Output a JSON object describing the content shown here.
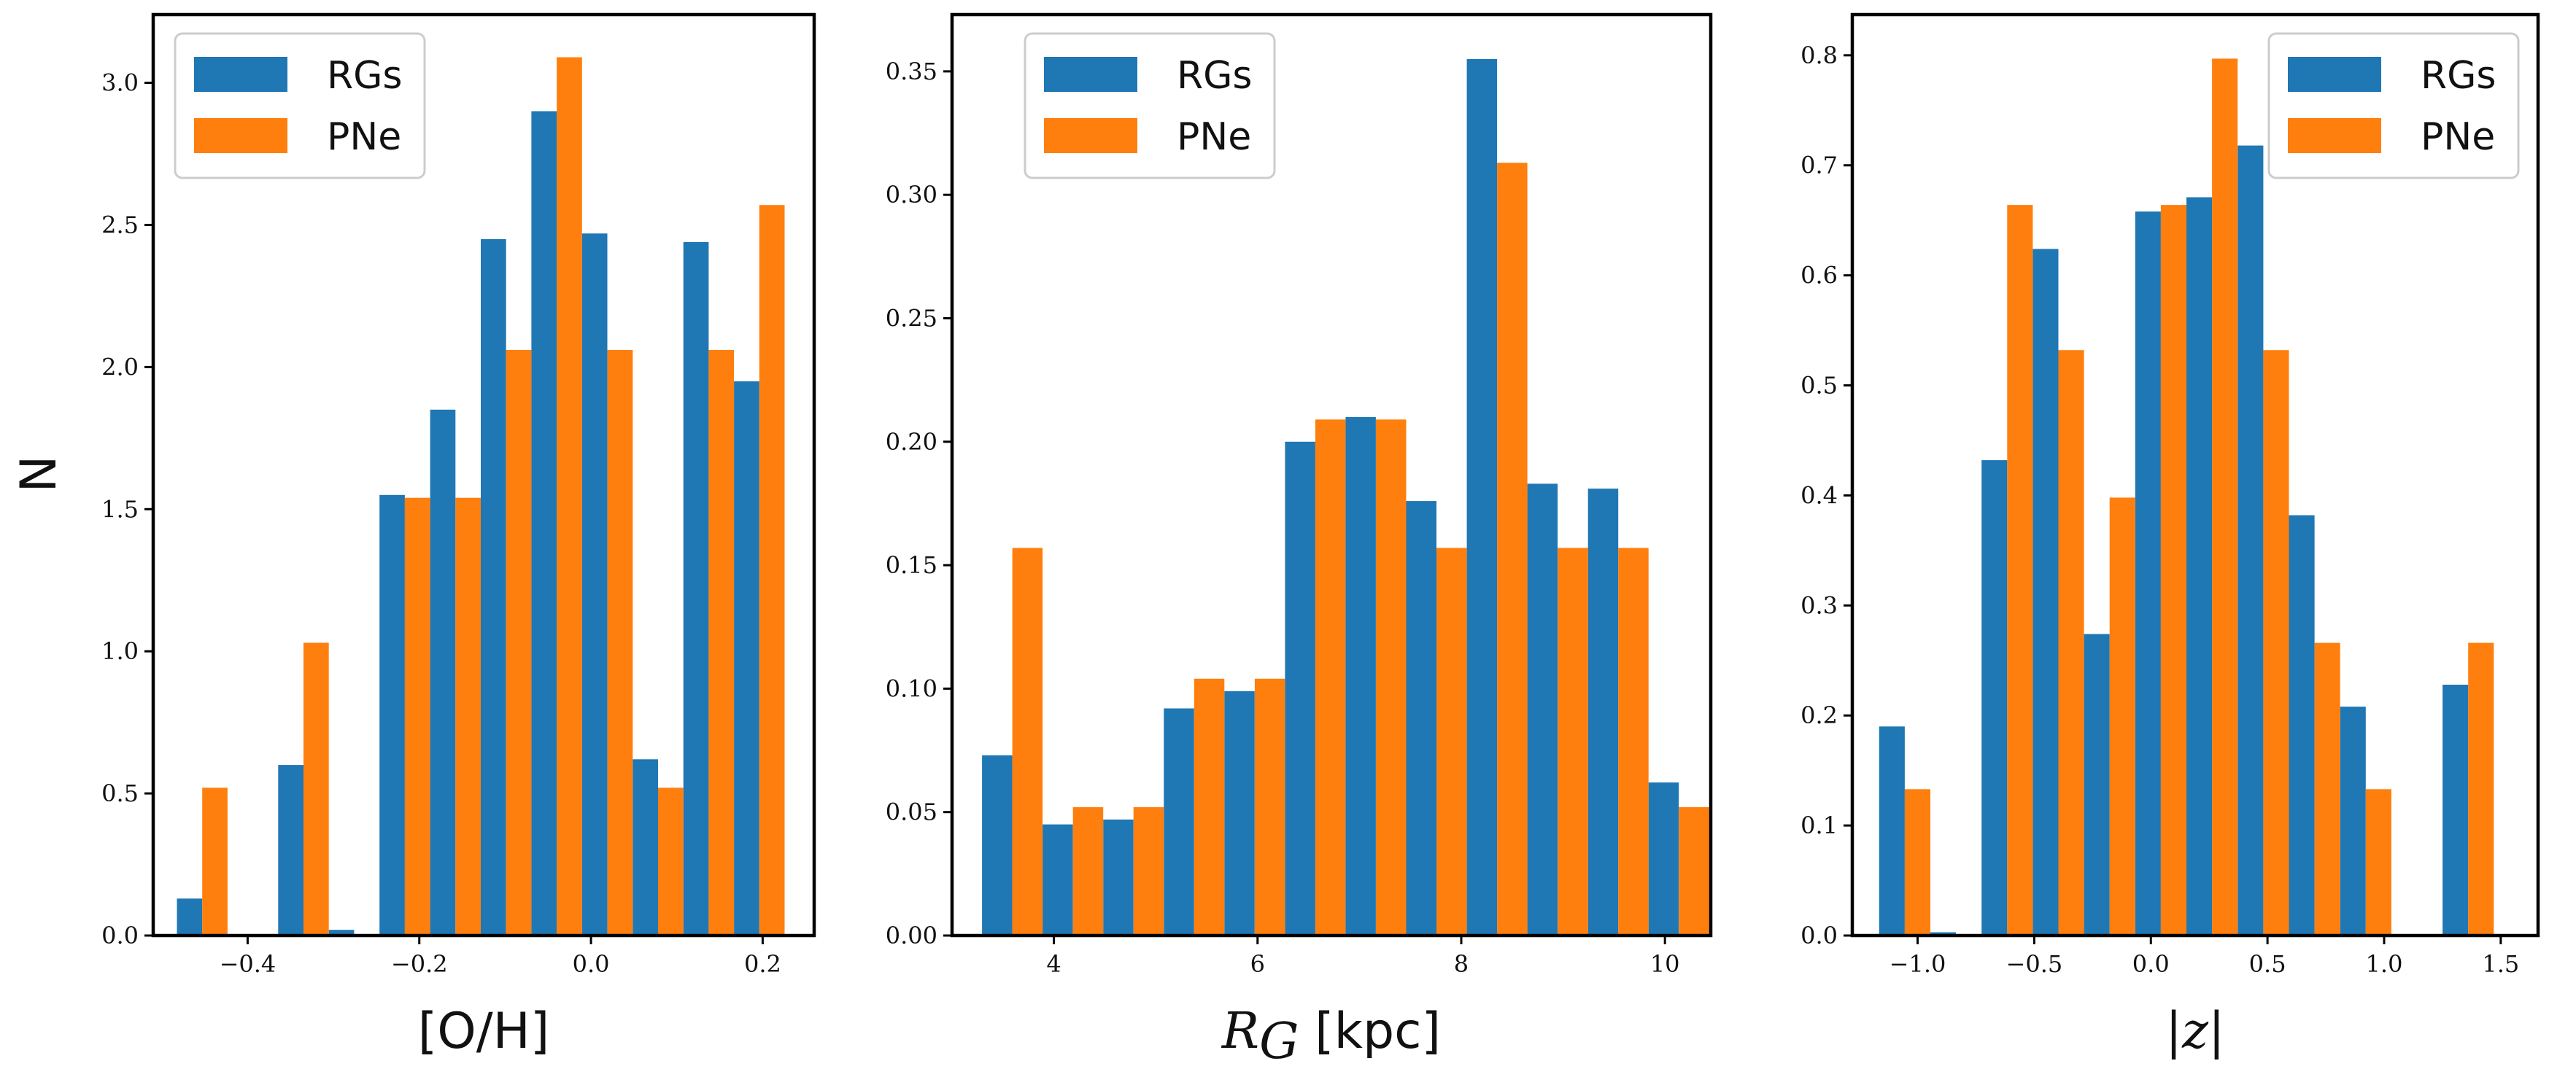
{
  "figure": {
    "ylabel": "N",
    "colors": {
      "RGs": "#1f77b4",
      "PNe": "#ff7f0e"
    }
  },
  "chart_data": [
    {
      "type": "bar",
      "title": "",
      "xlabel": "[O/H]",
      "ylabel": "N",
      "xlim": [
        -0.51,
        0.26
      ],
      "ylim": [
        0,
        3.24
      ],
      "bin_width": 0.059,
      "xticks": [
        -0.4,
        -0.2,
        0.0,
        0.2
      ],
      "xtick_labels": [
        "−0.4",
        "−0.2",
        "0.0",
        "0.2"
      ],
      "yticks": [
        0,
        0.5,
        1.0,
        1.5,
        2.0,
        2.5,
        3.0
      ],
      "ytick_labels": [
        "0.0",
        "0.5",
        "1.0",
        "1.5",
        "2.0",
        "2.5",
        "3.0"
      ],
      "legend_position": "top-left",
      "bin_centers": [
        -0.4529,
        -0.3939,
        -0.3349,
        -0.2759,
        -0.2169,
        -0.1579,
        -0.0989,
        -0.0399,
        0.0191,
        0.0781,
        0.1371,
        0.1961
      ],
      "series": [
        {
          "name": "RGs",
          "values": [
            0.13,
            0.0,
            0.6,
            0.02,
            1.55,
            1.85,
            2.45,
            2.9,
            2.47,
            0.62,
            2.44,
            1.95
          ]
        },
        {
          "name": "PNe",
          "values": [
            0.52,
            0.0,
            1.03,
            0.0,
            1.54,
            1.54,
            2.06,
            3.09,
            2.06,
            0.52,
            2.06,
            2.57
          ]
        }
      ]
    },
    {
      "type": "bar",
      "title": "",
      "xlabel": "R_G [kpc]",
      "xlabel_main": "R",
      "xlabel_sub": "G",
      "xlabel_unit": " [kpc]",
      "ylabel": "",
      "xlim": [
        3.0,
        10.45
      ],
      "ylim": [
        0,
        0.373
      ],
      "bin_width": 0.595,
      "xticks": [
        4,
        6,
        8,
        10
      ],
      "xtick_labels": [
        "4",
        "6",
        "8",
        "10"
      ],
      "yticks": [
        0,
        0.05,
        0.1,
        0.15,
        0.2,
        0.25,
        0.3,
        0.35
      ],
      "ytick_labels": [
        "0.00",
        "0.05",
        "0.10",
        "0.15",
        "0.20",
        "0.25",
        "0.30",
        "0.35"
      ],
      "legend_position": "top-left",
      "bin_centers": [
        3.5918,
        4.1868,
        4.7818,
        5.3768,
        5.9718,
        6.5668,
        7.1618,
        7.7568,
        8.3518,
        8.9468,
        9.5418,
        10.1368
      ],
      "series": [
        {
          "name": "RGs",
          "values": [
            0.073,
            0.045,
            0.047,
            0.092,
            0.099,
            0.2,
            0.21,
            0.176,
            0.355,
            0.183,
            0.181,
            0.062
          ]
        },
        {
          "name": "PNe",
          "values": [
            0.157,
            0.052,
            0.052,
            0.104,
            0.104,
            0.209,
            0.209,
            0.157,
            0.313,
            0.157,
            0.157,
            0.052
          ]
        }
      ]
    },
    {
      "type": "bar",
      "title": "",
      "xlabel": "|z|",
      "ylabel": "",
      "xlim": [
        -1.28,
        1.66
      ],
      "ylim": [
        0,
        0.837
      ],
      "bin_width": 0.2196,
      "xticks": [
        -1.0,
        -0.5,
        0.0,
        0.5,
        1.0,
        1.5
      ],
      "xtick_labels": [
        "−1.0",
        "−0.5",
        "0.0",
        "0.5",
        "1.0",
        "1.5"
      ],
      "yticks": [
        0,
        0.1,
        0.2,
        0.3,
        0.4,
        0.5,
        0.6,
        0.7,
        0.8
      ],
      "ytick_labels": [
        "0.0",
        "0.1",
        "0.2",
        "0.3",
        "0.4",
        "0.5",
        "0.6",
        "0.7",
        "0.8"
      ],
      "legend_position": "top-right",
      "bin_centers": [
        -1.0552,
        -0.8356,
        -0.616,
        -0.3964,
        -0.1768,
        0.0428,
        0.2624,
        0.482,
        0.7016,
        0.9212,
        1.1408,
        1.3604
      ],
      "series": [
        {
          "name": "RGs",
          "values": [
            0.19,
            0.003,
            0.432,
            0.624,
            0.274,
            0.658,
            0.671,
            0.718,
            0.382,
            0.208,
            0.0,
            0.228
          ]
        },
        {
          "name": "PNe",
          "values": [
            0.133,
            0.0,
            0.664,
            0.532,
            0.398,
            0.664,
            0.797,
            0.532,
            0.266,
            0.133,
            0.0,
            0.266
          ]
        }
      ]
    }
  ]
}
